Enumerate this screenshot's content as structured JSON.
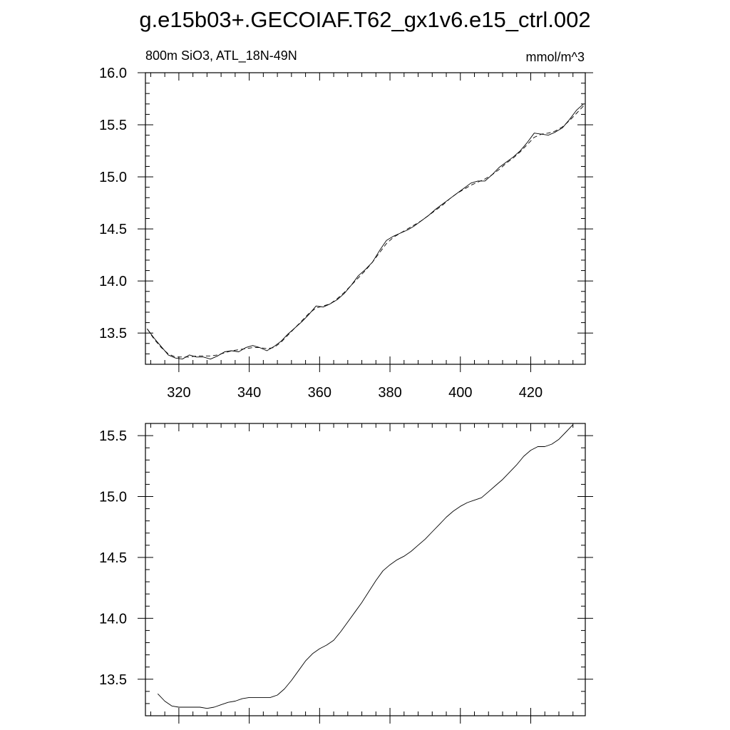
{
  "page": {
    "title": "g.e15b03+.GECOIAF.T62_gx1v6.e15_ctrl.002"
  },
  "chart_data": [
    {
      "type": "line",
      "left_label": "800m SiO3, ATL_18N-49N",
      "right_label": "mmol/m^3",
      "xlim": [
        310.5,
        435.5
      ],
      "ylim": [
        13.2,
        16.0
      ],
      "x_ticks": [
        320,
        340,
        360,
        380,
        400,
        420
      ],
      "x_tick_labels": [
        "320",
        "340",
        "360",
        "380",
        "400",
        "420"
      ],
      "y_ticks": [
        13.5,
        14.0,
        14.5,
        15.0,
        15.5,
        16.0
      ],
      "y_tick_labels": [
        "13.5",
        "14.0",
        "14.5",
        "15.0",
        "15.5",
        "16.0"
      ],
      "grid": false,
      "series": [
        {
          "style": "solid",
          "x": [
            311,
            313,
            315,
            317,
            319,
            321,
            323,
            325,
            327,
            329,
            331,
            333,
            335,
            337,
            339,
            341,
            343,
            345,
            347,
            349,
            351,
            353,
            355,
            357,
            359,
            361,
            363,
            365,
            367,
            369,
            371,
            373,
            375,
            377,
            379,
            381,
            383,
            385,
            387,
            389,
            391,
            393,
            395,
            397,
            399,
            401,
            403,
            405,
            407,
            409,
            411,
            413,
            415,
            417,
            419,
            421,
            423,
            425,
            427,
            429,
            431,
            433,
            435
          ],
          "y": [
            13.54,
            13.45,
            13.37,
            13.29,
            13.26,
            13.25,
            13.29,
            13.27,
            13.27,
            13.25,
            13.28,
            13.32,
            13.33,
            13.32,
            13.36,
            13.38,
            13.36,
            13.33,
            13.37,
            13.42,
            13.49,
            13.55,
            13.61,
            13.68,
            13.76,
            13.75,
            13.78,
            13.82,
            13.88,
            13.96,
            14.05,
            14.11,
            14.18,
            14.29,
            14.39,
            14.43,
            14.46,
            14.49,
            14.53,
            14.58,
            14.63,
            14.69,
            14.74,
            14.79,
            14.84,
            14.89,
            14.94,
            14.96,
            14.96,
            15.02,
            15.09,
            15.14,
            15.19,
            15.25,
            15.33,
            15.42,
            15.41,
            15.4,
            15.43,
            15.47,
            15.55,
            15.64,
            15.7
          ]
        },
        {
          "style": "dashed",
          "x": [
            311,
            313,
            315,
            317,
            319,
            321,
            323,
            325,
            327,
            329,
            331,
            333,
            335,
            337,
            339,
            341,
            343,
            345,
            347,
            349,
            351,
            353,
            355,
            357,
            359,
            361,
            363,
            365,
            367,
            369,
            371,
            373,
            375,
            377,
            379,
            381,
            383,
            385,
            387,
            389,
            391,
            393,
            395,
            397,
            399,
            401,
            403,
            405,
            407,
            409,
            411,
            413,
            415,
            417,
            419,
            421,
            423,
            425,
            427,
            429,
            431,
            433,
            435
          ],
          "y": [
            13.54,
            13.44,
            13.36,
            13.3,
            13.27,
            13.27,
            13.27,
            13.28,
            13.28,
            13.28,
            13.29,
            13.31,
            13.33,
            13.34,
            13.35,
            13.36,
            13.36,
            13.35,
            13.36,
            13.41,
            13.48,
            13.55,
            13.62,
            13.69,
            13.74,
            13.76,
            13.78,
            13.83,
            13.89,
            13.96,
            14.03,
            14.1,
            14.18,
            14.27,
            14.36,
            14.42,
            14.46,
            14.5,
            14.54,
            14.58,
            14.63,
            14.68,
            14.73,
            14.79,
            14.84,
            14.88,
            14.92,
            14.95,
            14.98,
            15.02,
            15.07,
            15.13,
            15.18,
            15.24,
            15.31,
            15.38,
            15.41,
            15.42,
            15.44,
            15.48,
            15.54,
            15.61,
            15.68
          ]
        }
      ]
    },
    {
      "type": "line",
      "xlim": [
        310.5,
        435.5
      ],
      "ylim": [
        13.2,
        15.6
      ],
      "x_ticks": [
        320,
        340,
        360,
        380,
        400,
        420
      ],
      "y_ticks": [
        13.5,
        14.0,
        14.5,
        15.0,
        15.5
      ],
      "y_tick_labels": [
        "13.5",
        "14.0",
        "14.5",
        "15.0",
        "15.5"
      ],
      "grid": false,
      "series": [
        {
          "style": "solid",
          "x": [
            314,
            316,
            318,
            320,
            322,
            324,
            326,
            328,
            330,
            332,
            334,
            336,
            338,
            340,
            342,
            344,
            346,
            348,
            350,
            352,
            354,
            356,
            358,
            360,
            362,
            364,
            366,
            368,
            370,
            372,
            374,
            376,
            378,
            380,
            382,
            384,
            386,
            388,
            390,
            392,
            394,
            396,
            398,
            400,
            402,
            404,
            406,
            408,
            410,
            412,
            414,
            416,
            418,
            420,
            422,
            424,
            426,
            428,
            430,
            432
          ],
          "y": [
            13.38,
            13.32,
            13.28,
            13.27,
            13.27,
            13.27,
            13.27,
            13.26,
            13.27,
            13.29,
            13.31,
            13.32,
            13.34,
            13.35,
            13.35,
            13.35,
            13.35,
            13.37,
            13.42,
            13.49,
            13.57,
            13.65,
            13.71,
            13.75,
            13.78,
            13.82,
            13.89,
            13.97,
            14.05,
            14.13,
            14.22,
            14.31,
            14.39,
            14.44,
            14.48,
            14.51,
            14.55,
            14.6,
            14.65,
            14.71,
            14.77,
            14.83,
            14.88,
            14.92,
            14.95,
            14.97,
            14.99,
            15.04,
            15.09,
            15.14,
            15.2,
            15.26,
            15.33,
            15.38,
            15.41,
            15.41,
            15.43,
            15.47,
            15.53,
            15.59
          ]
        }
      ]
    }
  ]
}
